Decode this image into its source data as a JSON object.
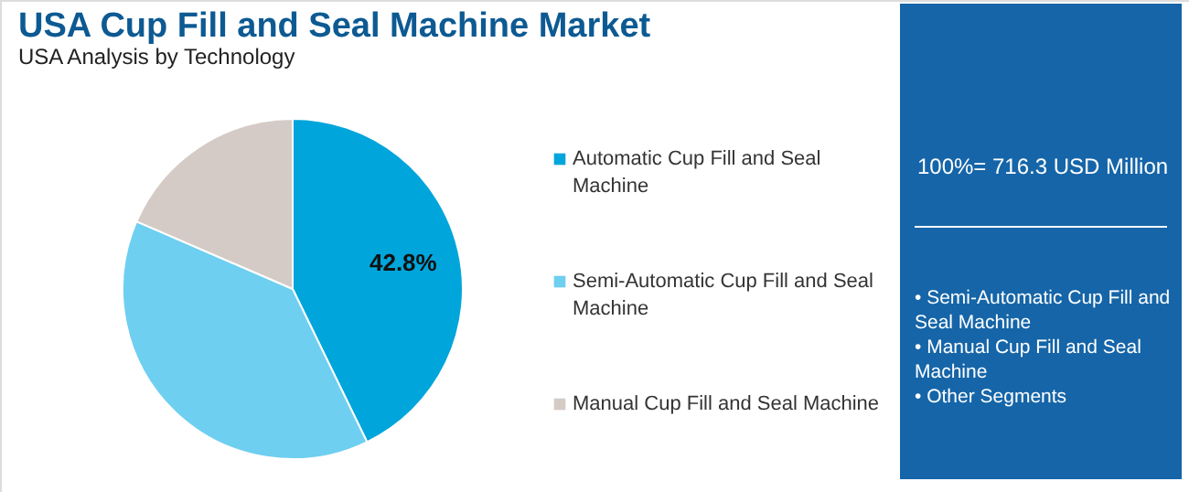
{
  "chart_data": {
    "type": "pie",
    "title": "USA Cup Fill and Seal Machine Market",
    "subtitle": "USA Analysis by Technology",
    "categories": [
      "Automatic Cup Fill and Seal Machine",
      "Semi-Automatic Cup Fill and Seal Machine",
      "Manual Cup Fill and Seal Machine"
    ],
    "values": [
      42.8,
      38.7,
      18.5
    ],
    "colors": [
      "#00a5db",
      "#6ecff0",
      "#d5cbc6"
    ],
    "value_labels": [
      "42.8%",
      null,
      null
    ],
    "legend": "right",
    "annotations": [
      "100%= 716.3 USD Million",
      "• Semi-Automatic Cup Fill and Seal Machine",
      "• Manual Cup Fill and Seal Machine",
      "• Other Segments"
    ]
  }
}
